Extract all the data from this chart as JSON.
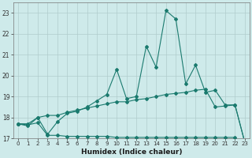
{
  "x": [
    0,
    1,
    2,
    3,
    4,
    5,
    6,
    7,
    8,
    9,
    10,
    11,
    12,
    13,
    14,
    15,
    16,
    17,
    18,
    19,
    20,
    21,
    22,
    23
  ],
  "line1": [
    17.7,
    17.6,
    18.0,
    17.2,
    17.8,
    18.2,
    18.3,
    18.5,
    18.8,
    19.1,
    20.3,
    18.9,
    19.0,
    21.4,
    20.4,
    23.1,
    22.7,
    19.6,
    20.5,
    19.2,
    19.3,
    18.6,
    18.6,
    16.8
  ],
  "line2": [
    17.7,
    17.7,
    18.0,
    18.1,
    18.1,
    18.25,
    18.35,
    18.45,
    18.55,
    18.65,
    18.75,
    18.75,
    18.85,
    18.9,
    19.0,
    19.1,
    19.15,
    19.2,
    19.3,
    19.35,
    18.5,
    18.55,
    18.6,
    16.8
  ],
  "line3": [
    17.7,
    17.65,
    17.75,
    17.15,
    17.15,
    17.1,
    17.1,
    17.1,
    17.1,
    17.1,
    17.05,
    17.05,
    17.05,
    17.05,
    17.05,
    17.05,
    17.05,
    17.05,
    17.05,
    17.05,
    17.05,
    17.05,
    17.05,
    16.75
  ],
  "line_color": "#1a7a6e",
  "bg_color": "#ceeaea",
  "grid_color": "#b0cccc",
  "ylim": [
    17.0,
    23.5
  ],
  "yticks": [
    17,
    18,
    19,
    20,
    21,
    22,
    23
  ],
  "xticks": [
    0,
    1,
    2,
    3,
    4,
    5,
    6,
    7,
    8,
    9,
    10,
    11,
    12,
    13,
    14,
    15,
    16,
    17,
    18,
    19,
    20,
    21,
    22,
    23
  ],
  "xlabel": "Humidex (Indice chaleur)"
}
